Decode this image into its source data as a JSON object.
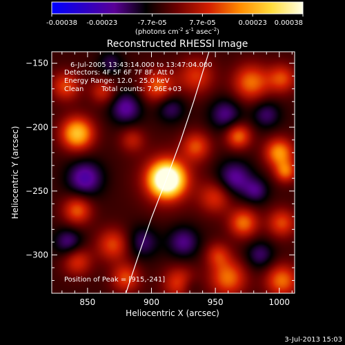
{
  "colorbar": {
    "ticks": [
      "-0.00038",
      "-0.00023",
      "-7.7e-05",
      "7.7e-05",
      "0.00023",
      "0.00038"
    ],
    "units_main": "(photons cm",
    "units_sup1": "-2",
    "units_mid1": " s",
    "units_sup2": "-1",
    "units_mid2": " asec",
    "units_sup3": "-2",
    "units_end": ")",
    "colors": [
      "#0000ff",
      "#2a00c8",
      "#5a0096",
      "#000000",
      "#6e0000",
      "#d21e00",
      "#ff8c00",
      "#ffdc3c",
      "#ffffe6"
    ]
  },
  "chart_data": {
    "type": "heatmap",
    "title": "Reconstructed RHESSI Image",
    "xlabel": "Heliocentric X (arcsec)",
    "ylabel": "Heliocentric Y (arcsec)",
    "xlim": [
      822,
      1012
    ],
    "ylim": [
      -330,
      -141
    ],
    "x_ticks": [
      850,
      900,
      950,
      1000
    ],
    "y_ticks": [
      -150,
      -200,
      -250,
      -300
    ],
    "x_tick_labels": [
      "850",
      "900",
      "950",
      "1000"
    ],
    "y_tick_labels": [
      "−150",
      "−200",
      "−250",
      "−300"
    ],
    "annotations": [
      "6-Jul-2005 13:43:14.000 to 13:47:04.000",
      "Detectors: 4F 5F 6F 7F 8F, Att 0",
      "Energy Range: 12.0 - 25.0 keV",
      "Clean",
      "Total counts: 7.96E+03"
    ],
    "peak_label": "Position of Peak = [915,-241]",
    "peak": [
      915,
      -241
    ],
    "limb_points": [
      [
        880,
        -330
      ],
      [
        890,
        -300
      ],
      [
        900,
        -271
      ],
      [
        912,
        -240
      ],
      [
        923,
        -210
      ],
      [
        933,
        -180
      ],
      [
        945,
        -141
      ]
    ],
    "sources": [
      {
        "x": 912,
        "y": -241,
        "s": 9,
        "a": 1.25
      },
      {
        "x": 912,
        "y": -241,
        "s": 15,
        "a": 0.35
      },
      {
        "x": 842,
        "y": -205,
        "s": 9,
        "a": 0.8
      },
      {
        "x": 833,
        "y": -168,
        "s": 8,
        "a": 0.45
      },
      {
        "x": 862,
        "y": -172,
        "s": 7,
        "a": 0.35
      },
      {
        "x": 905,
        "y": -168,
        "s": 9,
        "a": 0.5
      },
      {
        "x": 935,
        "y": -160,
        "s": 10,
        "a": 0.4
      },
      {
        "x": 978,
        "y": -165,
        "s": 10,
        "a": 0.55
      },
      {
        "x": 1002,
        "y": -162,
        "s": 8,
        "a": 0.45
      },
      {
        "x": 935,
        "y": -215,
        "s": 8,
        "a": 0.45
      },
      {
        "x": 968,
        "y": -207,
        "s": 7,
        "a": 0.55
      },
      {
        "x": 1000,
        "y": -220,
        "s": 8,
        "a": 0.65
      },
      {
        "x": 1005,
        "y": -235,
        "s": 6,
        "a": 0.5
      },
      {
        "x": 950,
        "y": -255,
        "s": 9,
        "a": 0.4
      },
      {
        "x": 972,
        "y": -275,
        "s": 8,
        "a": 0.55
      },
      {
        "x": 1002,
        "y": -275,
        "s": 8,
        "a": 0.45
      },
      {
        "x": 842,
        "y": -265,
        "s": 8,
        "a": 0.5
      },
      {
        "x": 870,
        "y": -292,
        "s": 9,
        "a": 0.45
      },
      {
        "x": 842,
        "y": -305,
        "s": 8,
        "a": 0.4
      },
      {
        "x": 880,
        "y": -318,
        "s": 8,
        "a": 0.45
      },
      {
        "x": 922,
        "y": -322,
        "s": 9,
        "a": 0.45
      },
      {
        "x": 960,
        "y": -318,
        "s": 10,
        "a": 0.55
      },
      {
        "x": 1002,
        "y": -320,
        "s": 9,
        "a": 0.55
      },
      {
        "x": 952,
        "y": -300,
        "s": 7,
        "a": 0.35
      },
      {
        "x": 885,
        "y": -210,
        "s": 7,
        "a": 0.3
      },
      {
        "x": 880,
        "y": -185,
        "s": 9,
        "a": -0.4
      },
      {
        "x": 848,
        "y": -240,
        "s": 10,
        "a": -0.45
      },
      {
        "x": 835,
        "y": -290,
        "s": 8,
        "a": -0.35
      },
      {
        "x": 893,
        "y": -290,
        "s": 9,
        "a": -0.3
      },
      {
        "x": 925,
        "y": -290,
        "s": 9,
        "a": -0.35
      },
      {
        "x": 915,
        "y": -185,
        "s": 8,
        "a": -0.3
      },
      {
        "x": 958,
        "y": -190,
        "s": 9,
        "a": -0.35
      },
      {
        "x": 965,
        "y": -240,
        "s": 10,
        "a": -0.4
      },
      {
        "x": 985,
        "y": -300,
        "s": 8,
        "a": -0.3
      },
      {
        "x": 990,
        "y": -190,
        "s": 8,
        "a": -0.3
      },
      {
        "x": 982,
        "y": -250,
        "s": 7,
        "a": -0.3
      },
      {
        "x": 868,
        "y": -150,
        "s": 7,
        "a": -0.25
      },
      {
        "x": 930,
        "y": -325,
        "s": 6,
        "a": -0.2
      }
    ]
  },
  "footer": {
    "timestamp": "3-Jul-2013 15:03"
  }
}
